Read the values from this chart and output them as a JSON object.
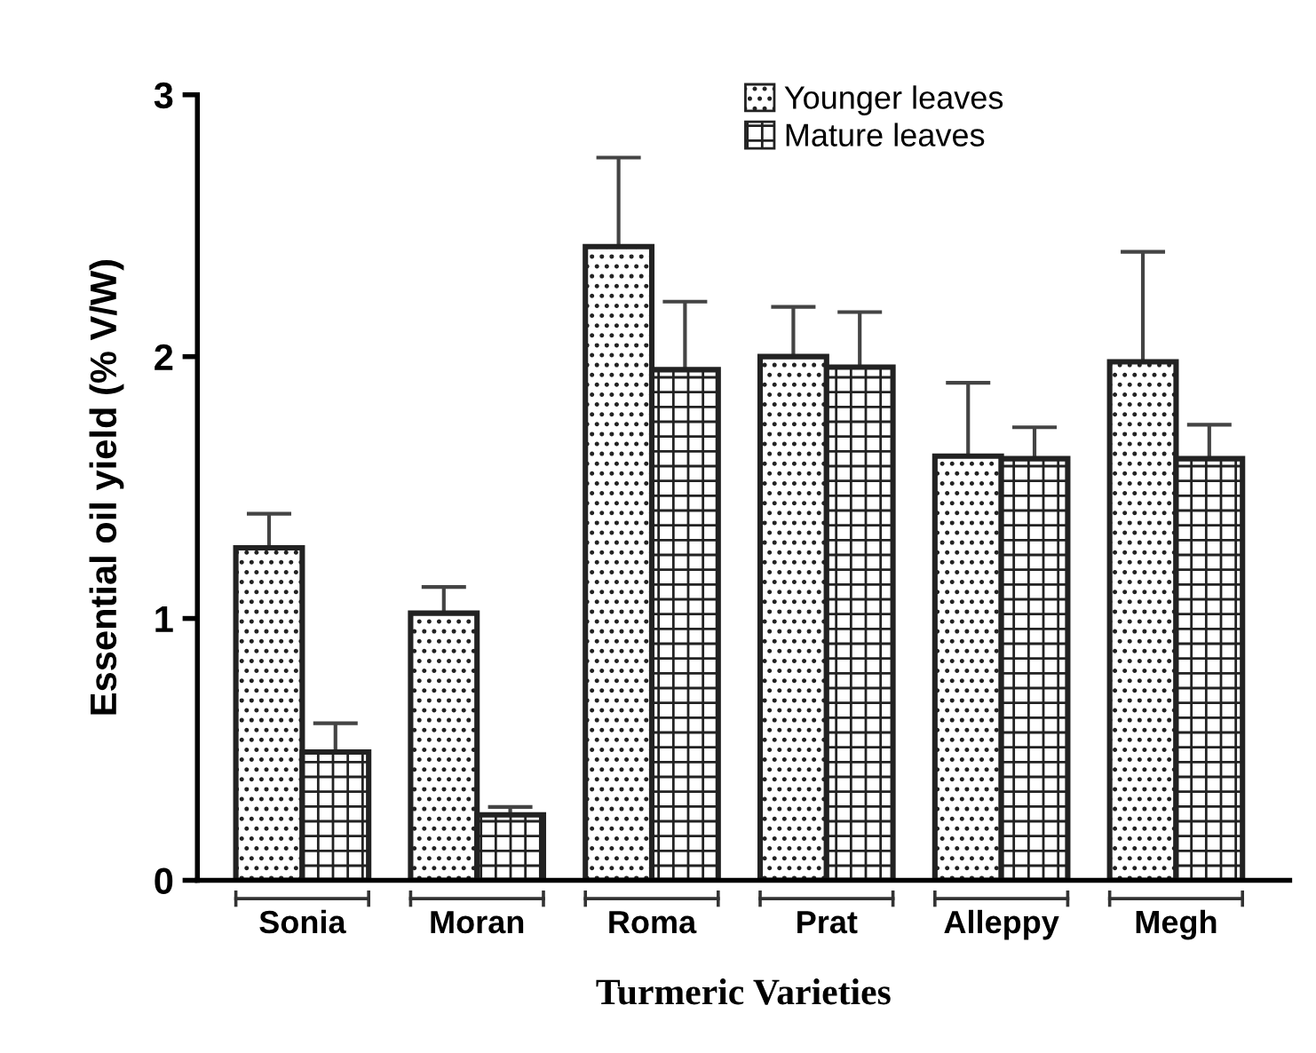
{
  "chart_data": {
    "type": "bar",
    "xlabel": "Turmeric Varieties",
    "ylabel": "Essential oil yield (% V/W)",
    "categories": [
      "Sonia",
      "Moran",
      "Roma",
      "Prat",
      "Alleppy",
      "Megh"
    ],
    "series": [
      {
        "name": "Younger leaves",
        "color": "#222222",
        "values": [
          1.27,
          1.02,
          2.42,
          2.0,
          1.62,
          1.98
        ],
        "errors": [
          [
            1.27,
            1.4
          ],
          [
            1.02,
            1.12
          ],
          [
            2.42,
            2.76
          ],
          [
            2.0,
            2.19
          ],
          [
            1.62,
            1.9
          ],
          [
            1.98,
            2.4
          ]
        ]
      },
      {
        "name": "Mature leaves",
        "color": "#222222",
        "values": [
          0.49,
          0.25,
          1.95,
          1.96,
          1.61,
          1.61
        ],
        "errors": [
          [
            0.49,
            0.6
          ],
          [
            0.25,
            0.28
          ],
          [
            1.95,
            2.21
          ],
          [
            1.96,
            2.17
          ],
          [
            1.61,
            1.73
          ],
          [
            1.61,
            1.74
          ]
        ]
      }
    ],
    "ylim": [
      0,
      3
    ],
    "yticks": [
      0,
      1,
      2,
      3
    ],
    "grid": false,
    "legend": "top"
  }
}
